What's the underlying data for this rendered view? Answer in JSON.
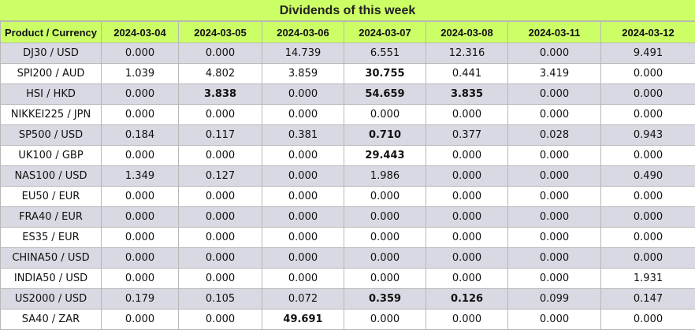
{
  "title": "Dividends of this week",
  "colors": {
    "header_bg": "#ccff66",
    "row_alt_bg": "#d9d9e3",
    "row_bg": "#ffffff"
  },
  "columns": [
    "Product / Currency",
    "2024-03-04",
    "2024-03-05",
    "2024-03-06",
    "2024-03-07",
    "2024-03-08",
    "2024-03-11",
    "2024-03-12"
  ],
  "rows": [
    {
      "product": "DJ30 / USD",
      "values": [
        "0.000",
        "0.000",
        "14.739",
        "6.551",
        "12.316",
        "0.000",
        "9.491"
      ],
      "bold": [
        false,
        false,
        false,
        false,
        false,
        false,
        false
      ]
    },
    {
      "product": "SPI200 / AUD",
      "values": [
        "1.039",
        "4.802",
        "3.859",
        "30.755",
        "0.441",
        "3.419",
        "0.000"
      ],
      "bold": [
        false,
        false,
        false,
        true,
        false,
        false,
        false
      ]
    },
    {
      "product": "HSI / HKD",
      "values": [
        "0.000",
        "3.838",
        "0.000",
        "54.659",
        "3.835",
        "0.000",
        "0.000"
      ],
      "bold": [
        false,
        true,
        false,
        true,
        true,
        false,
        false
      ]
    },
    {
      "product": "NIKKEI225 / JPN",
      "values": [
        "0.000",
        "0.000",
        "0.000",
        "0.000",
        "0.000",
        "0.000",
        "0.000"
      ],
      "bold": [
        false,
        false,
        false,
        false,
        false,
        false,
        false
      ]
    },
    {
      "product": "SP500 / USD",
      "values": [
        "0.184",
        "0.117",
        "0.381",
        "0.710",
        "0.377",
        "0.028",
        "0.943"
      ],
      "bold": [
        false,
        false,
        false,
        true,
        false,
        false,
        false
      ]
    },
    {
      "product": "UK100 / GBP",
      "values": [
        "0.000",
        "0.000",
        "0.000",
        "29.443",
        "0.000",
        "0.000",
        "0.000"
      ],
      "bold": [
        false,
        false,
        false,
        true,
        false,
        false,
        false
      ]
    },
    {
      "product": "NAS100 / USD",
      "values": [
        "1.349",
        "0.127",
        "0.000",
        "1.986",
        "0.000",
        "0.000",
        "0.490"
      ],
      "bold": [
        false,
        false,
        false,
        false,
        false,
        false,
        false
      ]
    },
    {
      "product": "EU50 / EUR",
      "values": [
        "0.000",
        "0.000",
        "0.000",
        "0.000",
        "0.000",
        "0.000",
        "0.000"
      ],
      "bold": [
        false,
        false,
        false,
        false,
        false,
        false,
        false
      ]
    },
    {
      "product": "FRA40 / EUR",
      "values": [
        "0.000",
        "0.000",
        "0.000",
        "0.000",
        "0.000",
        "0.000",
        "0.000"
      ],
      "bold": [
        false,
        false,
        false,
        false,
        false,
        false,
        false
      ]
    },
    {
      "product": "ES35 / EUR",
      "values": [
        "0.000",
        "0.000",
        "0.000",
        "0.000",
        "0.000",
        "0.000",
        "0.000"
      ],
      "bold": [
        false,
        false,
        false,
        false,
        false,
        false,
        false
      ]
    },
    {
      "product": "CHINA50 / USD",
      "values": [
        "0.000",
        "0.000",
        "0.000",
        "0.000",
        "0.000",
        "0.000",
        "0.000"
      ],
      "bold": [
        false,
        false,
        false,
        false,
        false,
        false,
        false
      ]
    },
    {
      "product": "INDIA50 / USD",
      "values": [
        "0.000",
        "0.000",
        "0.000",
        "0.000",
        "0.000",
        "0.000",
        "1.931"
      ],
      "bold": [
        false,
        false,
        false,
        false,
        false,
        false,
        false
      ]
    },
    {
      "product": "US2000 / USD",
      "values": [
        "0.179",
        "0.105",
        "0.072",
        "0.359",
        "0.126",
        "0.099",
        "0.147"
      ],
      "bold": [
        false,
        false,
        false,
        true,
        true,
        false,
        false
      ]
    },
    {
      "product": "SA40 / ZAR",
      "values": [
        "0.000",
        "0.000",
        "49.691",
        "0.000",
        "0.000",
        "0.000",
        "0.000"
      ],
      "bold": [
        false,
        false,
        true,
        false,
        false,
        false,
        false
      ]
    }
  ]
}
